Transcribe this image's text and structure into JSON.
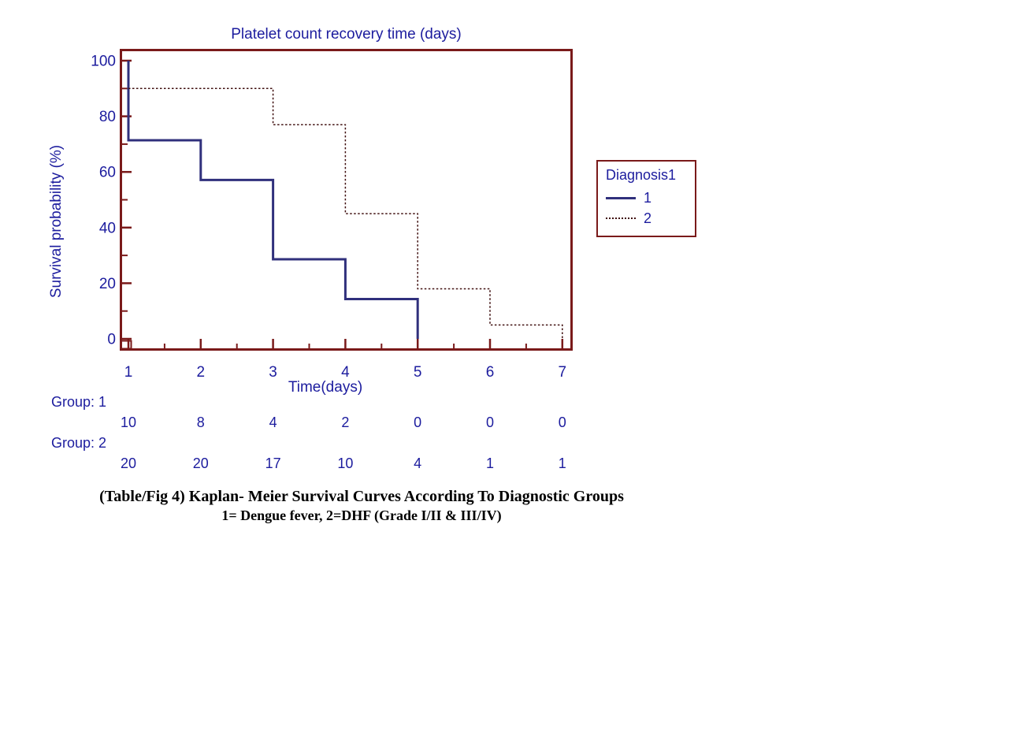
{
  "chart_data": {
    "type": "line",
    "subtype": "kaplan-meier-step",
    "title": "Platelet count recovery time (days)",
    "xlabel": "Time(days)",
    "ylabel": "Survival probability (%)",
    "x_ticks": [
      1,
      2,
      3,
      4,
      5,
      6,
      7
    ],
    "x_minor_ticks": [
      1.5,
      2.5,
      3.5,
      4.5,
      5.5,
      6.5
    ],
    "y_ticks": [
      0,
      20,
      40,
      60,
      80,
      100
    ],
    "y_minor_ticks": [
      10,
      30,
      50,
      70,
      90
    ],
    "xlim": [
      0.88,
      7.14
    ],
    "ylim": [
      -2,
      102
    ],
    "grid": false,
    "legend": {
      "title": "Diagnosis1",
      "position": "outside-right",
      "entries": [
        {
          "label": "1",
          "style": "solid",
          "color": "#30307c"
        },
        {
          "label": "2",
          "style": "dotted",
          "color": "#401010"
        }
      ]
    },
    "series": [
      {
        "name": "1",
        "style": "solid",
        "color": "#30307c",
        "points": [
          [
            1,
            100
          ],
          [
            1,
            71.4
          ],
          [
            2,
            71.4
          ],
          [
            2,
            57.1
          ],
          [
            3,
            57.1
          ],
          [
            3,
            28.6
          ],
          [
            4,
            28.6
          ],
          [
            4,
            14.3
          ],
          [
            5,
            14.3
          ],
          [
            5,
            0
          ]
        ]
      },
      {
        "name": "2",
        "style": "dotted",
        "color": "#401010",
        "points": [
          [
            1,
            90
          ],
          [
            3,
            90
          ],
          [
            3,
            77
          ],
          [
            4,
            77
          ],
          [
            4,
            45
          ],
          [
            5,
            45
          ],
          [
            5,
            18
          ],
          [
            6,
            18
          ],
          [
            6,
            5
          ],
          [
            7,
            5
          ],
          [
            7,
            0
          ]
        ]
      }
    ]
  },
  "at_risk": {
    "group1_label": "Group: 1",
    "group1_counts": [
      "10",
      "8",
      "4",
      "2",
      "0",
      "0",
      "0"
    ],
    "group2_label": "Group: 2",
    "group2_counts": [
      "20",
      "20",
      "17",
      "10",
      "4",
      "1",
      "1"
    ]
  },
  "caption": {
    "line1": "(Table/Fig 4) Kaplan- Meier Survival Curves According To Diagnostic Groups",
    "line2": "1= Dengue fever, 2=DHF (Grade I/II & III/IV)"
  },
  "colors": {
    "text_navy": "#1c1c9e",
    "axis_maroon": "#7a1a1a",
    "curve_solid": "#30307c",
    "curve_dotted": "#401010",
    "caption_black": "#000000",
    "background": "#ffffff"
  }
}
